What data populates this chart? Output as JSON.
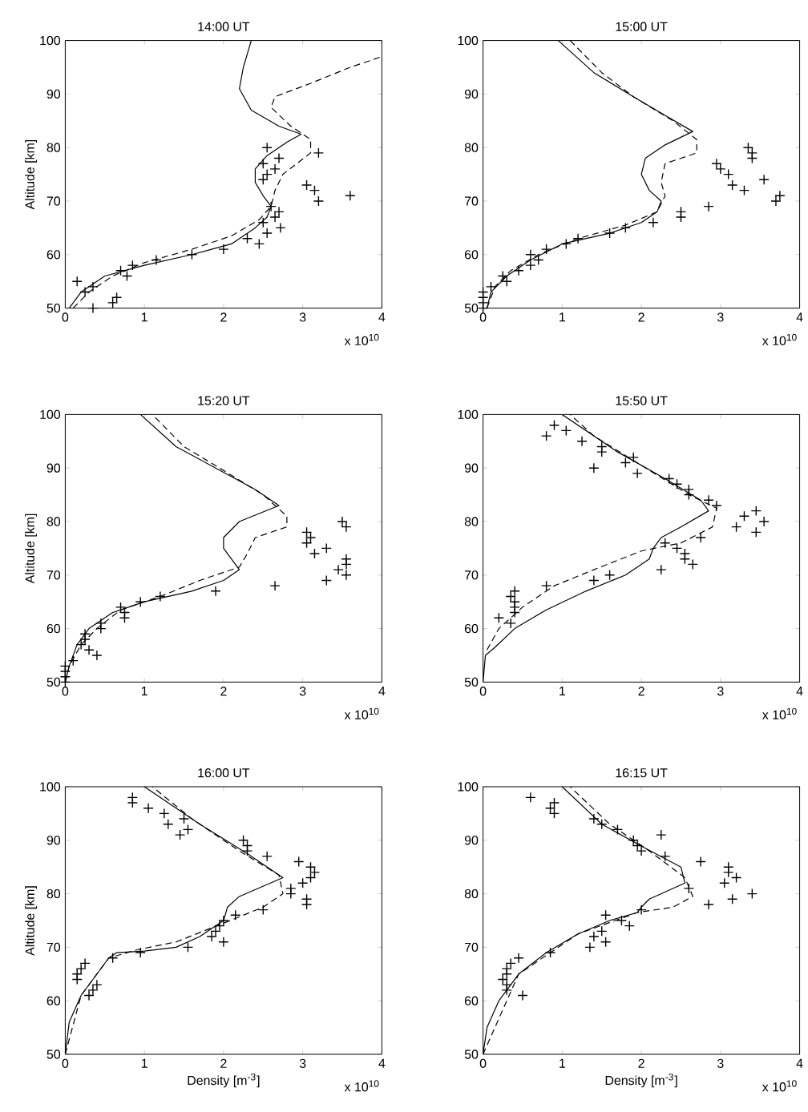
{
  "chart_data": [
    {
      "type": "line",
      "title": "14:00 UT",
      "ylabel": "Altitude [km]",
      "annotations": [
        "x 10$^{10}$"
      ],
      "xlim": [
        0,
        4
      ],
      "xticks": [
        0,
        1,
        2,
        3,
        4
      ],
      "ylim": [
        50,
        100
      ],
      "yticks": [
        50,
        60,
        70,
        80,
        90,
        100
      ],
      "series": [
        {
          "type": "line",
          "line_style": "solid",
          "color": "#000000",
          "x": [
            0.05,
            0.2,
            0.5,
            1,
            1.6,
            2.1,
            2.4,
            2.55,
            2.6,
            2.5,
            2.4,
            2.4,
            2.55,
            2.8,
            2.98,
            2.7,
            2.35,
            2.2,
            2.25,
            2.35
          ],
          "values": [
            50,
            53,
            56,
            58,
            60,
            62,
            65,
            67,
            69,
            71,
            73.5,
            76,
            78.5,
            81,
            82.5,
            84,
            87,
            91,
            95,
            100
          ]
        },
        {
          "type": "line",
          "line_style": "dashed",
          "color": "#000000",
          "x": [
            0.1,
            0.3,
            0.6,
            1,
            1.6,
            2.1,
            2.45,
            2.6,
            2.65,
            2.75,
            3.1,
            3.1,
            2.85,
            2.6,
            2.65,
            3.1,
            3.6,
            4
          ],
          "values": [
            50,
            53,
            56,
            58.5,
            61,
            63.5,
            66.5,
            69,
            72,
            75,
            79,
            81.5,
            84,
            87.5,
            89.5,
            92,
            95,
            97
          ]
        },
        {
          "type": "scatter",
          "marker": "cross",
          "color": "#000000",
          "x": [
            0.15,
            0.25,
            0.35,
            0.35,
            0.6,
            0.65,
            0.7,
            0.78,
            0.85,
            1.15,
            1.6,
            2.0,
            2.3,
            2.45,
            2.55,
            2.5,
            2.72,
            2.65,
            2.7,
            2.6,
            2.5,
            2.55,
            2.65,
            2.5,
            2.7,
            2.55,
            3.2,
            3.05,
            3.15,
            3.2,
            3.6
          ],
          "values": [
            55,
            53,
            54,
            50,
            51,
            52,
            57,
            56,
            58,
            59,
            60,
            61,
            63,
            62,
            64,
            66,
            65,
            67,
            68,
            69,
            74,
            75,
            76,
            77,
            78,
            80,
            79,
            73,
            72,
            70,
            71
          ]
        }
      ]
    },
    {
      "type": "line",
      "title": "15:00 UT",
      "annotations": [
        "x 10$^{10}$"
      ],
      "xlim": [
        0,
        4
      ],
      "xticks": [
        0,
        1,
        2,
        3,
        4
      ],
      "ylim": [
        50,
        100
      ],
      "yticks": [
        50,
        60,
        70,
        80,
        90,
        100
      ],
      "series": [
        {
          "type": "line",
          "line_style": "solid",
          "color": "#000000",
          "x": [
            0.05,
            0.1,
            0.3,
            0.6,
            1,
            1.6,
            2.0,
            2.2,
            2.25,
            2.1,
            2.0,
            2.05,
            2.3,
            2.65,
            2.3,
            1.9,
            1.4,
            0.95
          ],
          "values": [
            50,
            53,
            56,
            59,
            62,
            64,
            66,
            68,
            70,
            72,
            75,
            78,
            80.5,
            83,
            86,
            89.5,
            94,
            100
          ]
        },
        {
          "type": "line",
          "line_style": "dashed",
          "color": "#000000",
          "x": [
            0.05,
            0.15,
            0.35,
            0.7,
            1.2,
            1.8,
            2.2,
            2.3,
            2.25,
            2.3,
            2.7,
            2.7,
            2.4,
            1.9,
            1.5,
            1.1
          ],
          "values": [
            50,
            54,
            57,
            60,
            63,
            65.5,
            68,
            71,
            73.5,
            77,
            79,
            81.5,
            85,
            89.5,
            94,
            100
          ]
        },
        {
          "type": "scatter",
          "marker": "cross",
          "color": "#000000",
          "x": [
            0,
            0,
            0,
            0,
            0.1,
            0.25,
            0.3,
            0.45,
            0.6,
            0.6,
            0.7,
            0.8,
            1.05,
            1.2,
            1.6,
            1.8,
            2.15,
            2.5,
            2.5,
            2.85,
            2.95,
            3.0,
            3.1,
            3.15,
            3.3,
            3.35,
            3.4,
            3.4,
            3.55,
            3.7,
            3.75
          ],
          "values": [
            50,
            51,
            52,
            53,
            54,
            56,
            55,
            57,
            58,
            60,
            59,
            61,
            62,
            63,
            64,
            65,
            66,
            67,
            68,
            69,
            77,
            76,
            75,
            73,
            72,
            80,
            79,
            78,
            74,
            70,
            71
          ]
        }
      ]
    },
    {
      "type": "line",
      "title": "15:20 UT",
      "ylabel": "Altitude [km]",
      "annotations": [
        "x 10$^{10}$"
      ],
      "xlim": [
        0,
        4
      ],
      "xticks": [
        0,
        1,
        2,
        3,
        4
      ],
      "ylim": [
        50,
        100
      ],
      "yticks": [
        50,
        60,
        70,
        80,
        90,
        100
      ],
      "series": [
        {
          "type": "line",
          "line_style": "solid",
          "color": "#000000",
          "x": [
            0,
            0.05,
            0.15,
            0.3,
            0.6,
            1.0,
            1.6,
            2.0,
            2.2,
            2.1,
            2.0,
            2.0,
            2.2,
            2.7,
            2.4,
            1.9,
            1.4,
            0.95
          ],
          "values": [
            50,
            53,
            57,
            60,
            63,
            65,
            67,
            69,
            71,
            73,
            75,
            77,
            80,
            83,
            86,
            90,
            94,
            100
          ]
        },
        {
          "type": "line",
          "line_style": "dashed",
          "color": "#000000",
          "x": [
            0,
            0.05,
            0.2,
            0.4,
            0.7,
            1.2,
            1.7,
            2.2,
            2.3,
            2.4,
            2.8,
            2.8,
            2.5,
            1.95,
            1.5,
            1.1
          ],
          "values": [
            50,
            53,
            57,
            60,
            63.5,
            66,
            69,
            71.5,
            74,
            77,
            79,
            81,
            85,
            90,
            94,
            100
          ]
        },
        {
          "type": "scatter",
          "marker": "cross",
          "color": "#000000",
          "x": [
            0,
            0,
            0,
            0,
            0.1,
            0.2,
            0.25,
            0.25,
            0.3,
            0.4,
            0.45,
            0.45,
            0.7,
            0.75,
            0.75,
            0.95,
            1.2,
            1.9,
            2.65,
            3.05,
            3.05,
            3.1,
            3.15,
            3.3,
            3.3,
            3.45,
            3.5,
            3.55,
            3.55,
            3.55,
            3.55
          ],
          "values": [
            50,
            51,
            52,
            53,
            54,
            57,
            58,
            59,
            56,
            55,
            60,
            61,
            64,
            62,
            63,
            65,
            66,
            67,
            68,
            76,
            78,
            77,
            74,
            75,
            69,
            71,
            80,
            79,
            73,
            72,
            70
          ]
        }
      ]
    },
    {
      "type": "line",
      "title": "15:50 UT",
      "annotations": [
        "x 10$^{10}$"
      ],
      "xlim": [
        0,
        4
      ],
      "xticks": [
        0,
        1,
        2,
        3,
        4
      ],
      "ylim": [
        50,
        100
      ],
      "yticks": [
        50,
        60,
        70,
        80,
        90,
        100
      ],
      "series": [
        {
          "type": "line",
          "line_style": "solid",
          "color": "#000000",
          "x": [
            0,
            0.03,
            0.15,
            0.4,
            0.8,
            1.3,
            1.8,
            2.1,
            2.15,
            2.25,
            2.5,
            2.85,
            2.75,
            2.3,
            1.7,
            1.0
          ],
          "values": [
            50,
            55,
            56.5,
            60,
            63.5,
            67,
            70,
            73,
            75,
            77,
            79,
            82,
            84,
            88,
            93,
            100
          ]
        },
        {
          "type": "line",
          "line_style": "dashed",
          "color": "#000000",
          "x": [
            0.05,
            0.2,
            0.5,
            0.9,
            1.4,
            2.0,
            2.5,
            2.9,
            2.95,
            2.6,
            2.0,
            1.4,
            1.1
          ],
          "values": [
            56,
            60,
            64,
            68,
            71,
            74.5,
            76,
            79,
            82.5,
            85,
            90.5,
            96,
            100
          ]
        },
        {
          "type": "scatter",
          "marker": "cross",
          "color": "#000000",
          "x": [
            0.2,
            0.35,
            0.35,
            0.4,
            0.4,
            0.4,
            0.4,
            0.8,
            1.4,
            1.6,
            2.25,
            2.65,
            2.55,
            2.55,
            2.45,
            2.3,
            2.75,
            3.2,
            3.3,
            3.45,
            3.45,
            3.55,
            2.95,
            2.85,
            2.6,
            2.6,
            2.45,
            2.35,
            1.95,
            1.4,
            1.8,
            1.9,
            1.5,
            1.5,
            1.25,
            0.8,
            1.05,
            0.9
          ],
          "values": [
            62,
            61,
            66,
            67,
            65,
            64,
            63,
            68,
            69,
            70,
            71,
            72,
            73,
            74,
            75,
            76,
            77,
            79,
            81,
            82,
            78,
            80,
            83,
            84,
            85,
            86,
            87,
            88,
            89,
            90,
            91,
            92,
            93,
            94,
            95,
            96,
            97,
            98
          ]
        }
      ]
    },
    {
      "type": "line",
      "title": "16:00 UT",
      "xlabel": "Density [m$^{-3}$]",
      "ylabel": "Altitude [km]",
      "annotations": [
        "x 10$^{10}$"
      ],
      "xlim": [
        0,
        4
      ],
      "xticks": [
        0,
        1,
        2,
        3,
        4
      ],
      "ylim": [
        50,
        100
      ],
      "yticks": [
        50,
        60,
        70,
        80,
        90,
        100
      ],
      "series": [
        {
          "type": "line",
          "line_style": "solid",
          "color": "#000000",
          "x": [
            0,
            0.05,
            0.2,
            0.4,
            0.55,
            0.65,
            1.0,
            1.4,
            1.7,
            2.0,
            2.05,
            2.2,
            2.75,
            2.3,
            1.7,
            1.0
          ],
          "values": [
            50,
            56,
            61,
            65,
            68,
            69,
            69.3,
            70,
            72,
            75,
            77.5,
            79.5,
            83,
            87.5,
            93,
            100
          ]
        },
        {
          "type": "line",
          "line_style": "dashed",
          "color": "#000000",
          "x": [
            0,
            0.2,
            0.55,
            0.9,
            1.4,
            2.0,
            2.5,
            2.75,
            2.7,
            2.2,
            1.6,
            1.1
          ],
          "values": [
            50,
            61,
            68,
            69.5,
            71,
            74.5,
            77.5,
            80,
            83.5,
            88,
            94,
            100
          ]
        },
        {
          "type": "scatter",
          "marker": "cross",
          "color": "#000000",
          "x": [
            0.15,
            0.15,
            0.2,
            0.25,
            0.3,
            0.35,
            0.4,
            0.6,
            0.95,
            1.55,
            2.0,
            1.85,
            1.9,
            1.95,
            2.0,
            2.15,
            2.5,
            3.05,
            3.05,
            2.85,
            2.85,
            3.0,
            3.1,
            3.15,
            3.1,
            2.95,
            2.55,
            2.3,
            2.3,
            2.25,
            1.45,
            1.55,
            1.3,
            1.5,
            1.25,
            1.05,
            0.85,
            0.85
          ],
          "values": [
            64,
            65,
            66,
            67,
            61,
            62,
            63,
            68,
            69,
            70,
            71,
            72,
            73,
            74,
            75,
            76,
            77,
            78,
            79,
            80,
            81,
            82,
            83,
            84,
            85,
            86,
            87,
            88,
            89,
            90,
            91,
            92,
            93,
            94,
            95,
            96,
            97,
            98
          ]
        }
      ]
    },
    {
      "type": "line",
      "title": "16:15 UT",
      "xlabel": "Density [m$^{-3}$]",
      "annotations": [
        "x 10$^{10}$"
      ],
      "xlim": [
        0,
        4
      ],
      "xticks": [
        0,
        1,
        2,
        3,
        4
      ],
      "ylim": [
        50,
        100
      ],
      "yticks": [
        50,
        60,
        70,
        80,
        90,
        100
      ],
      "series": [
        {
          "type": "line",
          "line_style": "solid",
          "color": "#000000",
          "x": [
            0,
            0.05,
            0.2,
            0.45,
            0.8,
            1.2,
            1.6,
            1.95,
            2.0,
            2.1,
            2.55,
            2.5,
            2.05,
            1.5,
            1.0
          ],
          "values": [
            50,
            55,
            60,
            65,
            69,
            72.5,
            75,
            76.5,
            77.5,
            79,
            82,
            85,
            88.5,
            93,
            100
          ]
        },
        {
          "type": "line",
          "line_style": "dashed",
          "color": "#000000",
          "x": [
            0,
            0.45,
            1.2,
            1.95,
            2.4,
            2.65,
            2.55,
            2.1,
            1.6,
            1.1
          ],
          "values": [
            50,
            65,
            72.5,
            76.5,
            77.5,
            79.5,
            83,
            88,
            93,
            100
          ]
        },
        {
          "type": "scatter",
          "marker": "cross",
          "color": "#000000",
          "x": [
            0.5,
            0.3,
            0.3,
            0.25,
            0.3,
            0.3,
            0.35,
            0.45,
            0.85,
            1.35,
            1.55,
            1.4,
            1.5,
            1.85,
            1.75,
            1.55,
            2.0,
            2.85,
            3.15,
            3.4,
            2.6,
            3.05,
            3.2,
            3.1,
            3.1,
            2.75,
            2.3,
            2.0,
            1.95,
            1.9,
            2.25,
            1.7,
            1.5,
            1.4,
            0.9,
            0.85,
            0.9,
            0.6
          ],
          "values": [
            61,
            62,
            63,
            64,
            65,
            66,
            67,
            68,
            69,
            70,
            71,
            72,
            73,
            74,
            75,
            76,
            77,
            78,
            79,
            80,
            81,
            82,
            83,
            84,
            85,
            86,
            87,
            88,
            89,
            90,
            91,
            92,
            93,
            94,
            95,
            96,
            97,
            98
          ]
        }
      ]
    }
  ]
}
